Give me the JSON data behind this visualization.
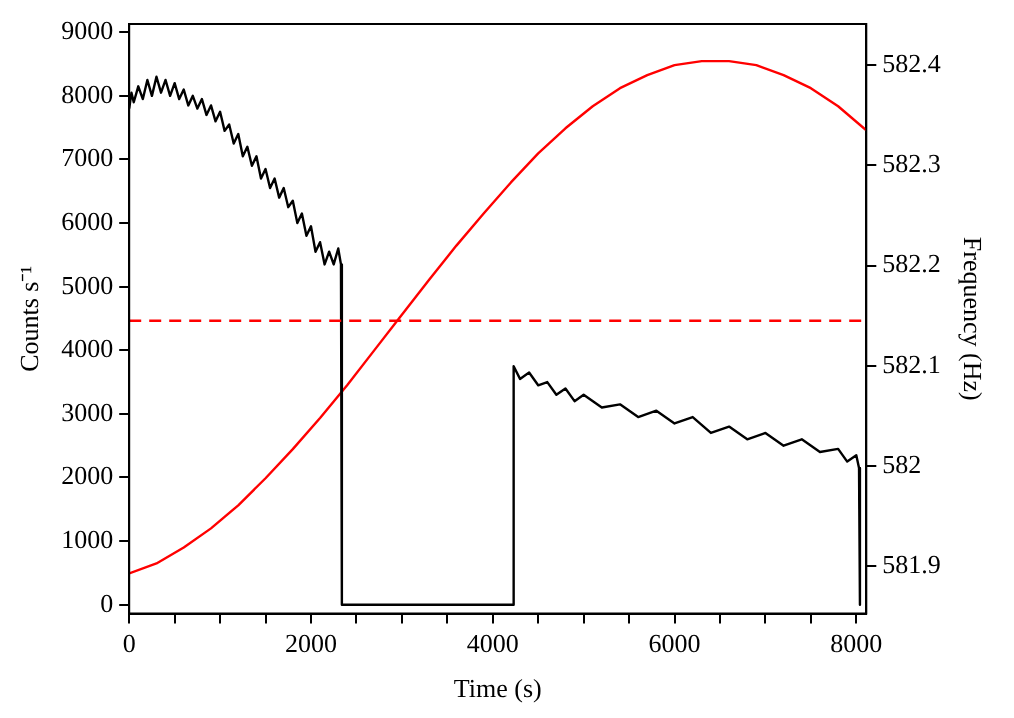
{
  "chart_data": {
    "type": "line",
    "xlabel": "Time (s)",
    "ylabel": "Counts s⁻¹",
    "y2label": "Frequency (Hz)",
    "marker": "none",
    "grid": false,
    "legend": false,
    "xlim": [
      0,
      8110
    ],
    "ylim": [
      -140,
      9130
    ],
    "y2lim": [
      581.853,
      582.441
    ],
    "xticks": [
      0,
      {
        "value": 500,
        "label": null
      },
      {
        "value": 1000,
        "label": null
      },
      {
        "value": 1500,
        "label": null
      },
      2000,
      {
        "value": 2500,
        "label": null
      },
      {
        "value": 3000,
        "label": null
      },
      {
        "value": 3500,
        "label": null
      },
      4000,
      {
        "value": 4500,
        "label": null
      },
      {
        "value": 5000,
        "label": null
      },
      {
        "value": 5500,
        "label": null
      },
      6000,
      {
        "value": 6500,
        "label": null
      },
      {
        "value": 7000,
        "label": null
      },
      {
        "value": 7500,
        "label": null
      },
      8000
    ],
    "yticks": [
      0,
      1000,
      2000,
      3000,
      4000,
      5000,
      6000,
      7000,
      8000,
      9000
    ],
    "y2ticks": [
      581.9,
      582.0,
      582.1,
      582.2,
      582.3,
      582.4
    ],
    "series": [
      {
        "color": "#000000",
        "line_style": "solid",
        "x": [
          0,
          25,
          50,
          100,
          150,
          200,
          250,
          300,
          350,
          400,
          450,
          500,
          550,
          600,
          650,
          700,
          750,
          800,
          850,
          900,
          950,
          1000,
          1050,
          1100,
          1150,
          1200,
          1250,
          1300,
          1350,
          1400,
          1450,
          1500,
          1550,
          1600,
          1650,
          1700,
          1750,
          1800,
          1850,
          1900,
          1950,
          2000,
          2050,
          2100,
          2150,
          2200,
          2250,
          2300,
          2330,
          2340,
          4220,
          4230,
          4300,
          4400,
          4500,
          4600,
          4700,
          4800,
          4900,
          5000,
          5200,
          5400,
          5600,
          5800,
          6000,
          6200,
          6400,
          6600,
          6800,
          7000,
          7200,
          7400,
          7600,
          7800,
          7900,
          8000,
          8030,
          8040
        ],
        "values": [
          7800,
          8050,
          7900,
          8150,
          7950,
          8250,
          8000,
          8300,
          8050,
          8250,
          8000,
          8200,
          7950,
          8100,
          7850,
          8000,
          7800,
          7950,
          7700,
          7850,
          7600,
          7750,
          7450,
          7550,
          7250,
          7400,
          7050,
          7200,
          6900,
          7050,
          6700,
          6850,
          6550,
          6700,
          6400,
          6550,
          6250,
          6350,
          6000,
          6150,
          5800,
          5950,
          5550,
          5700,
          5350,
          5550,
          5350,
          5600,
          5350,
          0,
          0,
          3750,
          3550,
          3650,
          3450,
          3500,
          3300,
          3400,
          3200,
          3300,
          3100,
          3150,
          2950,
          3050,
          2850,
          2950,
          2700,
          2800,
          2600,
          2700,
          2500,
          2600,
          2400,
          2450,
          2250,
          2350,
          2150,
          0
        ]
      },
      {
        "color": "#ff0000",
        "line_style": "solid",
        "axis": "y2",
        "x": [
          0,
          300,
          600,
          900,
          1200,
          1500,
          1800,
          2100,
          2400,
          2700,
          3000,
          3300,
          3600,
          3900,
          4200,
          4500,
          4800,
          5100,
          5400,
          5700,
          6000,
          6300,
          6600,
          6900,
          7200,
          7500,
          7800,
          8110
        ],
        "values": [
          581.893,
          581.903,
          581.919,
          581.938,
          581.961,
          581.988,
          582.017,
          582.048,
          582.081,
          582.116,
          582.151,
          582.186,
          582.22,
          582.252,
          582.283,
          582.312,
          582.337,
          582.359,
          582.377,
          582.39,
          582.4,
          582.404,
          582.404,
          582.4,
          582.39,
          582.377,
          582.359,
          582.335
        ]
      }
    ],
    "ref_lines": [
      {
        "axis": "y2",
        "value": 582.145,
        "color": "#ff0000",
        "line_style": "dashed"
      }
    ]
  }
}
